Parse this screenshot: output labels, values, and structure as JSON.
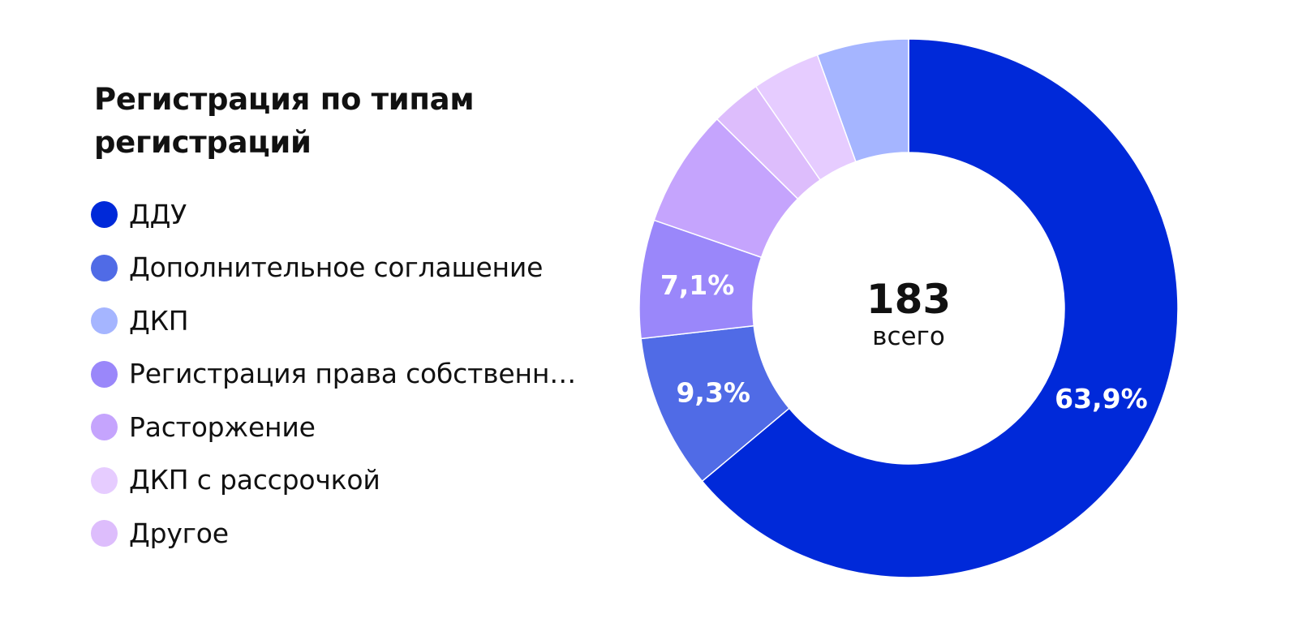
{
  "chart_data": {
    "type": "pie",
    "variant": "donut",
    "title": "Регистрация по типам регистраций",
    "categories": [
      "ДДУ",
      "Дополнительное соглашение",
      "ДКП",
      "Регистрация права собственн…",
      "Расторжение",
      "ДКП с рассрочкой",
      "Другое"
    ],
    "values": [
      63.9,
      9.3,
      5.5,
      7.1,
      7.1,
      4.1,
      3.0
    ],
    "unit": "%",
    "data_labels": [
      {
        "category": "ДДУ",
        "text": "63,9%"
      },
      {
        "category": "Дополнительное соглашение",
        "text": "9,3%"
      },
      {
        "category": "Регистрация права собственн…",
        "text": "7,1%"
      }
    ],
    "center": {
      "total": "183",
      "caption": "всего"
    },
    "colors": [
      "#0029D9",
      "#506BE6",
      "#A5B5FF",
      "#9A87FA",
      "#C5A4FD",
      "#E6CCFF",
      "#DDBDFC"
    ],
    "legend_position": "left",
    "slice_order_clockwise_from_top": [
      "ДДУ",
      "Дополнительное соглашение",
      "Регистрация права собственн…",
      "Расторжение",
      "Другое",
      "ДКП с рассрочкой",
      "ДКП"
    ]
  }
}
